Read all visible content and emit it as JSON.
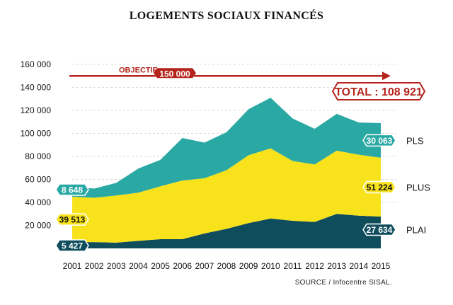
{
  "chart_data": {
    "type": "area",
    "title": "LOGEMENTS SOCIAUX FINANCÉS",
    "source": "SOURCE /  Infocentre SISAL.",
    "x": [
      "2001",
      "2002",
      "2003",
      "2004",
      "2005",
      "2006",
      "2007",
      "2008",
      "2009",
      "2010",
      "2011",
      "2012",
      "2013",
      "2014",
      "2015"
    ],
    "ylim": [
      0,
      160000
    ],
    "yticks": [
      "160 000",
      "140 000",
      "120 000",
      "100 000",
      "80 000",
      "60 000",
      "40 000",
      "20 000"
    ],
    "stacked": true,
    "series": [
      {
        "name": "PLAI",
        "color": "#0f4d5c",
        "values": [
          5427,
          5500,
          5000,
          6500,
          8000,
          8000,
          13000,
          17000,
          22000,
          26000,
          24000,
          23000,
          30000,
          28500,
          27634
        ],
        "label_start": "5 427",
        "label_end": "27 634"
      },
      {
        "name": "PLUS",
        "color": "#f7e21c",
        "values": [
          39513,
          38500,
          41000,
          42000,
          46000,
          51000,
          48000,
          51000,
          59000,
          61000,
          52000,
          50000,
          55000,
          53000,
          51224
        ],
        "label_start": "39 513",
        "label_end": "51 224"
      },
      {
        "name": "PLS",
        "color": "#2aa9a4",
        "values": [
          8648,
          8000,
          11000,
          21000,
          23000,
          37000,
          31000,
          33000,
          40000,
          44000,
          37000,
          31000,
          32000,
          28000,
          30063
        ],
        "label_start": "8 648",
        "label_end": "30 063"
      }
    ],
    "objectif": {
      "label": "OBJECTIF",
      "value_label": "150 000",
      "value": 150000
    },
    "total": {
      "label": "TOTAL : 108 921",
      "value": 108921
    },
    "grid": true,
    "colors": {
      "accent": "#b5241c",
      "grid": "#d9d9d9"
    }
  }
}
